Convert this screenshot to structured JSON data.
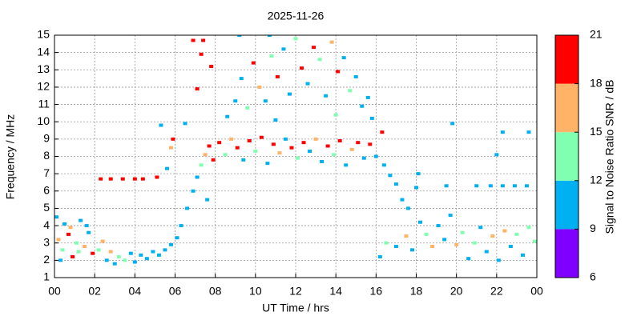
{
  "chart_data": {
    "type": "scatter",
    "title": "2025-11-26",
    "x_label": "UT Time / hrs",
    "y_label": "Frequency / MHz",
    "xlim": [
      0,
      24
    ],
    "xticks": [
      {
        "value": 0,
        "label": "00"
      },
      {
        "value": 2,
        "label": "02"
      },
      {
        "value": 4,
        "label": "04"
      },
      {
        "value": 6,
        "label": "06"
      },
      {
        "value": 8,
        "label": "08"
      },
      10,
      12,
      14,
      16,
      18,
      20,
      22,
      {
        "value": 24,
        "label": "00"
      }
    ],
    "ylim": [
      1,
      15
    ],
    "yticks": [
      1,
      2,
      3,
      4,
      5,
      6,
      7,
      8,
      9,
      10,
      11,
      12,
      13,
      14,
      15
    ],
    "grid": true,
    "colorbar": {
      "label": "Signal to Noise Ratio SNR / dB",
      "lim": [
        6,
        21
      ],
      "ticks": [
        6,
        9,
        12,
        15,
        18,
        21
      ],
      "colors": [
        "#7f00ff",
        "#00b0f0",
        "#80ffb0",
        "#ffb366",
        "#ff0000"
      ]
    },
    "points": [
      [
        0.2,
        3.2,
        17
      ],
      [
        0.4,
        2.6,
        12
      ],
      [
        0.5,
        4.1,
        10
      ],
      [
        0.7,
        3.5,
        19
      ],
      [
        0.9,
        2.2,
        20
      ],
      [
        1.1,
        3.0,
        14
      ],
      [
        1.3,
        4.3,
        10
      ],
      [
        1.5,
        2.8,
        17
      ],
      [
        1.7,
        3.6,
        11
      ],
      [
        1.9,
        2.4,
        20
      ],
      [
        0.1,
        4.5,
        10
      ],
      [
        0.3,
        2.0,
        11
      ],
      [
        0.8,
        3.9,
        16
      ],
      [
        1.2,
        2.5,
        12
      ],
      [
        1.6,
        4.0,
        10
      ],
      [
        2.2,
        2.6,
        13
      ],
      [
        2.4,
        3.1,
        17
      ],
      [
        2.6,
        2.0,
        11
      ],
      [
        2.8,
        2.5,
        15
      ],
      [
        3.0,
        1.8,
        10
      ],
      [
        3.2,
        2.2,
        12
      ],
      [
        3.5,
        2.0,
        14
      ],
      [
        3.8,
        2.4,
        10
      ],
      [
        4.0,
        1.9,
        11
      ],
      [
        4.3,
        2.3,
        10
      ],
      [
        4.6,
        2.1,
        10
      ],
      [
        4.9,
        2.5,
        10
      ],
      [
        5.2,
        2.3,
        11
      ],
      [
        5.5,
        2.6,
        10
      ],
      [
        5.8,
        2.9,
        10
      ],
      [
        2.3,
        6.7,
        19
      ],
      [
        2.8,
        6.7,
        20
      ],
      [
        3.4,
        6.7,
        19
      ],
      [
        4.0,
        6.7,
        20
      ],
      [
        4.4,
        6.7,
        19
      ],
      [
        5.1,
        6.8,
        19
      ],
      [
        5.6,
        7.3,
        10
      ],
      [
        5.3,
        9.8,
        10
      ],
      [
        5.8,
        8.5,
        15
      ],
      [
        5.9,
        9.0,
        19
      ],
      [
        6.1,
        3.3,
        10
      ],
      [
        6.3,
        4.0,
        10
      ],
      [
        6.6,
        5.0,
        10
      ],
      [
        6.9,
        6.0,
        10
      ],
      [
        7.1,
        6.8,
        10
      ],
      [
        7.3,
        7.5,
        12
      ],
      [
        7.5,
        8.1,
        15
      ],
      [
        7.7,
        8.6,
        19
      ],
      [
        7.9,
        7.8,
        20
      ],
      [
        6.9,
        14.7,
        20
      ],
      [
        7.4,
        14.7,
        20
      ],
      [
        7.3,
        13.9,
        19
      ],
      [
        7.8,
        13.2,
        20
      ],
      [
        7.1,
        11.9,
        19
      ],
      [
        6.5,
        9.9,
        10
      ],
      [
        7.6,
        5.5,
        10
      ],
      [
        8.2,
        8.8,
        20
      ],
      [
        8.5,
        8.1,
        13
      ],
      [
        8.8,
        9.0,
        16
      ],
      [
        9.1,
        8.5,
        20
      ],
      [
        9.4,
        7.8,
        10
      ],
      [
        9.7,
        8.9,
        19
      ],
      [
        10.0,
        8.3,
        14
      ],
      [
        10.3,
        9.1,
        20
      ],
      [
        10.6,
        7.6,
        11
      ],
      [
        10.9,
        8.7,
        19
      ],
      [
        11.2,
        8.2,
        16
      ],
      [
        11.5,
        9.0,
        10
      ],
      [
        11.8,
        8.5,
        20
      ],
      [
        12.1,
        7.9,
        13
      ],
      [
        12.4,
        8.8,
        19
      ],
      [
        12.7,
        8.3,
        10
      ],
      [
        13.0,
        9.0,
        16
      ],
      [
        13.3,
        7.7,
        11
      ],
      [
        13.6,
        8.6,
        20
      ],
      [
        13.9,
        8.1,
        13
      ],
      [
        14.2,
        8.9,
        19
      ],
      [
        14.5,
        7.5,
        10
      ],
      [
        14.8,
        8.4,
        16
      ],
      [
        15.1,
        8.8,
        20
      ],
      [
        15.4,
        7.9,
        11
      ],
      [
        15.7,
        8.7,
        19
      ],
      [
        16.0,
        8.0,
        10
      ],
      [
        16.3,
        9.4,
        20
      ],
      [
        8.6,
        10.3,
        10
      ],
      [
        9.0,
        11.2,
        11
      ],
      [
        9.3,
        12.5,
        10
      ],
      [
        9.6,
        10.8,
        13
      ],
      [
        9.9,
        13.4,
        19
      ],
      [
        10.2,
        12.0,
        15
      ],
      [
        10.5,
        11.2,
        10
      ],
      [
        10.8,
        13.8,
        14
      ],
      [
        11.1,
        12.6,
        20
      ],
      [
        11.4,
        14.2,
        11
      ],
      [
        11.7,
        11.6,
        10
      ],
      [
        12.0,
        14.8,
        13
      ],
      [
        12.3,
        13.1,
        19
      ],
      [
        12.6,
        12.2,
        10
      ],
      [
        12.9,
        14.3,
        20
      ],
      [
        13.2,
        13.6,
        12
      ],
      [
        13.5,
        11.5,
        10
      ],
      [
        13.8,
        14.6,
        16
      ],
      [
        14.1,
        12.9,
        19
      ],
      [
        14.4,
        13.7,
        10
      ],
      [
        14.7,
        11.8,
        13
      ],
      [
        15.0,
        12.6,
        10
      ],
      [
        15.3,
        10.9,
        11
      ],
      [
        15.6,
        11.4,
        10
      ],
      [
        9.2,
        15.0,
        10
      ],
      [
        10.7,
        15.0,
        10
      ],
      [
        15.8,
        10.2,
        10
      ],
      [
        14.0,
        10.4,
        12
      ],
      [
        11.0,
        10.1,
        11
      ],
      [
        16.4,
        7.5,
        11
      ],
      [
        16.7,
        6.9,
        10
      ],
      [
        17.0,
        6.4,
        10
      ],
      [
        17.3,
        5.5,
        10
      ],
      [
        17.6,
        5.0,
        11
      ],
      [
        16.5,
        3.0,
        14
      ],
      [
        17.0,
        2.8,
        10
      ],
      [
        17.5,
        3.4,
        15
      ],
      [
        16.2,
        2.2,
        10
      ],
      [
        18.0,
        6.2,
        10
      ],
      [
        17.8,
        2.6,
        11
      ],
      [
        18.2,
        4.2,
        10
      ],
      [
        18.5,
        3.5,
        13
      ],
      [
        18.8,
        2.8,
        15
      ],
      [
        19.1,
        4.0,
        10
      ],
      [
        19.4,
        3.2,
        11
      ],
      [
        19.7,
        4.6,
        10
      ],
      [
        20.0,
        2.9,
        17
      ],
      [
        20.3,
        3.6,
        12
      ],
      [
        20.6,
        2.1,
        10
      ],
      [
        20.9,
        3.0,
        14
      ],
      [
        21.2,
        3.9,
        10
      ],
      [
        21.5,
        2.5,
        11
      ],
      [
        21.8,
        3.4,
        16
      ],
      [
        22.1,
        2.0,
        10
      ],
      [
        22.4,
        3.7,
        17
      ],
      [
        22.7,
        2.8,
        11
      ],
      [
        23.0,
        3.5,
        13
      ],
      [
        23.3,
        2.3,
        10
      ],
      [
        23.6,
        3.9,
        12
      ],
      [
        23.9,
        3.1,
        14
      ],
      [
        21.0,
        6.3,
        10
      ],
      [
        21.7,
        6.3,
        10
      ],
      [
        22.3,
        6.3,
        10
      ],
      [
        22.9,
        6.3,
        10
      ],
      [
        23.5,
        6.3,
        10
      ],
      [
        19.5,
        6.3,
        10
      ],
      [
        22.3,
        9.4,
        10
      ],
      [
        23.6,
        9.4,
        10
      ],
      [
        19.8,
        9.9,
        10
      ],
      [
        22.0,
        8.1,
        10
      ],
      [
        18.1,
        7.0,
        10
      ]
    ]
  }
}
